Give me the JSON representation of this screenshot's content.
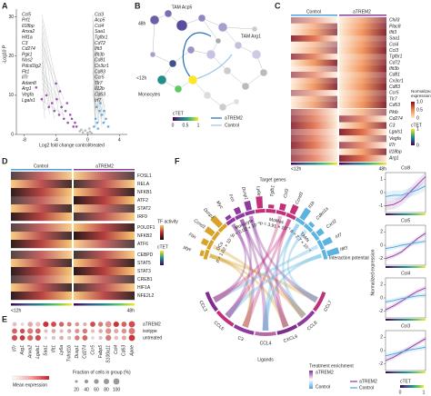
{
  "panel_labels": [
    "A",
    "B",
    "C",
    "D",
    "E",
    "F"
  ],
  "volcano": {
    "type": "scatter",
    "x_label": "Log2 fold change control/treated",
    "y_label": "-Log10 P",
    "xlim": [
      -9,
      5
    ],
    "ylim": [
      0,
      32
    ],
    "xticks": [
      -8,
      -4,
      0,
      4
    ],
    "yticks": [
      0,
      10,
      20,
      30
    ],
    "left_genes": [
      "Ccl5",
      "Prf1",
      "Il18bp",
      "Anxa2",
      "Hif1a",
      "C3",
      "Cd274",
      "Pgk1",
      "Nos2",
      "Pdcd1lg2",
      "Flt1",
      "Il7r",
      "Adam8",
      "Arg1",
      "Vegfa",
      "Lgals1"
    ],
    "right_genes": [
      "Ccl3",
      "Acp5",
      "Ccl4",
      "Saa1",
      "Tgfbr1",
      "Cd72",
      "Ifit3",
      "Ifit3b",
      "Cd81",
      "Cx3cr1",
      "Cd83",
      "Ccr5",
      "Tlr7",
      "Il12b",
      "Cd63",
      "Irf7"
    ],
    "groups": [
      {
        "color": "#7d2e8f",
        "x": [
          -6.5,
          -5.8,
          -5.2,
          -4.9,
          -4.5,
          -4.2,
          -3.9,
          -3.6,
          -3.3,
          -3.0,
          -2.8,
          -2.5,
          -2.2,
          -2.0,
          -1.8,
          -1.6,
          -1.4,
          -3.5,
          -4.0,
          -2.6
        ],
        "y": [
          12,
          9,
          10,
          7,
          8,
          6,
          9,
          5,
          7,
          4,
          6,
          3,
          5,
          4,
          2,
          3,
          2,
          11,
          13,
          8
        ]
      },
      {
        "color": "#3b9ad6",
        "x": [
          0.8,
          1.0,
          1.2,
          1.5,
          1.8,
          2.0,
          2.3,
          2.6,
          1.1,
          1.6,
          2.1,
          1.3
        ],
        "y": [
          2,
          4,
          3,
          6,
          5,
          3,
          4,
          2,
          7,
          8,
          6,
          1.5
        ]
      },
      {
        "color": "#aaaaaa",
        "x": [
          -1,
          -0.6,
          -0.3,
          0,
          0.3,
          0.5,
          -0.8,
          0.2
        ],
        "y": [
          0.8,
          0.5,
          1,
          0.4,
          0.7,
          0.3,
          1.2,
          1.5
        ]
      }
    ]
  },
  "network": {
    "tam_acp5": "TAM Acp5",
    "tam_arg1": "TAM Arg1",
    "t48": "48h",
    "t12": "<12h",
    "monocytes": "Monocytes",
    "legend_title": "cTET",
    "colorbar_ticks": [
      0,
      0.5,
      1
    ],
    "legend": [
      {
        "name": "aTREM2",
        "color": "#1f6fb4"
      },
      {
        "name": "Control",
        "color": "#9bc5e6"
      }
    ]
  },
  "heatmap_c": {
    "groups": [
      "Control",
      "aTREM2"
    ],
    "genes_up": [
      "Chil3",
      "Plac8",
      "Ifit3",
      "Saa1",
      "Ccl4",
      "Ccl3",
      "Tgfbr1",
      "Cd72",
      "Ifit3b",
      "Cd81",
      "Cx3cr1",
      "Cd83",
      "Ccr5",
      "Tlr7",
      "Cd63"
    ],
    "genes_down": [
      "Pkib",
      "Cd274",
      "C3",
      "Lgals1",
      "Vegfa",
      "Il7r",
      "Il18bp",
      "Arg1"
    ],
    "legend_title": "Normalized expression",
    "legend_ticks": [
      {
        "value": 1,
        "label": "1.0"
      },
      0.5,
      0
    ],
    "ctet_title": "cTET",
    "ctet_ticks": [
      0,
      1
    ],
    "time_labels": [
      "<12h",
      "48h"
    ]
  },
  "tf_heatmap": {
    "groups": [
      "Control",
      "aTREM2"
    ],
    "tfs": [
      "FOSL1",
      "RELA",
      "NFKB1",
      "ATF2",
      "STAT2",
      "IRF9",
      "POU2F1",
      "NFKB2",
      "ATF6",
      "CEBPD",
      "STAT5",
      "STAT3",
      "CREB1",
      "HIF1A",
      "NFE2L2"
    ],
    "legend_title": "TF activity",
    "ctet_title": "cTET",
    "time_labels": [
      "<12h",
      "48h"
    ]
  },
  "dotplot": {
    "genes": [
      "Il7r",
      "Arg1",
      "Anxa2",
      "Lgals1",
      "Saa1",
      "Ifit1",
      "Ly6a",
      "Tnfrsf1b",
      "Dusp1",
      "Cd274",
      "Ccr5",
      "Fabp5",
      "S100a11",
      "Ccl4",
      "Cd63",
      "Apoe"
    ],
    "groups": [
      "aTREM2",
      "isotype",
      "untreated"
    ],
    "mean": [
      [
        0.3,
        0.2,
        0.4,
        0.3,
        0.9,
        0.8,
        0.7,
        0.6,
        0.5,
        0.4,
        0.8,
        0.6,
        0.5,
        0.9,
        0.7,
        0.8
      ],
      [
        0.7,
        0.8,
        0.6,
        0.7,
        0.3,
        0.4,
        0.3,
        0.4,
        0.5,
        0.6,
        0.3,
        0.4,
        0.5,
        0.4,
        0.5,
        0.6
      ],
      [
        0.8,
        0.9,
        0.7,
        0.8,
        0.2,
        0.3,
        0.4,
        0.3,
        0.6,
        0.7,
        0.2,
        0.3,
        0.6,
        0.3,
        0.4,
        0.9
      ]
    ],
    "fraction": [
      [
        40,
        20,
        60,
        50,
        80,
        70,
        60,
        50,
        40,
        30,
        70,
        60,
        90,
        80,
        70,
        100
      ],
      [
        70,
        60,
        80,
        70,
        30,
        40,
        30,
        40,
        50,
        60,
        30,
        40,
        80,
        50,
        60,
        100
      ],
      [
        80,
        70,
        80,
        80,
        20,
        30,
        40,
        30,
        60,
        70,
        20,
        30,
        80,
        40,
        50,
        100
      ]
    ],
    "mean_title": "Mean expression",
    "fraction_title": "Fraction of cells in group (%)",
    "fraction_ticks": [
      20,
      40,
      60,
      80,
      100
    ]
  },
  "chord": {
    "title_targets": "Target genes",
    "title_interaction": "Interaction potential",
    "title_ligands": "Ligands",
    "targets": [
      {
        "label": "Myc",
        "color": "#d8a32a"
      },
      {
        "label": "Fos",
        "color": "#d8a32a"
      },
      {
        "label": "Ccnd1",
        "color": "#d8a32a"
      },
      {
        "label": "Dusp1",
        "color": "#d8a32a"
      },
      {
        "label": "Myc",
        "color": "#8e3a9e"
      },
      {
        "label": "Fos",
        "color": "#8e3a9e"
      },
      {
        "label": "Dusp1",
        "color": "#8e3a9e"
      },
      {
        "label": "Ly6e",
        "color": "#c2307a"
      },
      {
        "label": "Tgfb1",
        "color": "#c2307a"
      },
      {
        "label": "Ccl3",
        "color": "#c2307a"
      },
      {
        "label": "Ccnd1",
        "color": "#c2307a"
      },
      {
        "label": "Il1b",
        "color": "#5bb4e0"
      },
      {
        "label": "Cdkn1a",
        "color": "#5bb4e0"
      },
      {
        "label": "Cxcl2",
        "color": "#5bb4e0"
      },
      {
        "label": "Irf7",
        "color": "#5bb4e0"
      },
      {
        "label": "Ifit3",
        "color": "#5bb4e0"
      }
    ],
    "ligands": [
      "CCL7",
      "CCL8",
      "CXCL9",
      "CCL4",
      "C3",
      "CCL5",
      "CCL3"
    ],
    "cell_types": [
      "DCs",
      "Monocyte",
      "MoMac",
      "TAMs"
    ],
    "pvalues": [
      "p = 1.02 × 10⁻²",
      "p = 5.02 × 10⁻⁸",
      "p = 3.91 × 10⁻⁵",
      "p = 2.7 × 10⁻⁴"
    ],
    "legend_title": "Treatment enrichment",
    "legend": [
      {
        "name": "aTREM2",
        "color": "#7d2e8f"
      },
      {
        "name": "Control",
        "color": "#4aa3df"
      }
    ]
  },
  "line_plots": {
    "y_label": "Normalized expression",
    "legend": [
      {
        "name": "aTREM2",
        "color": "#8e3a9e"
      },
      {
        "name": "Control",
        "color": "#4aa3df"
      }
    ],
    "ctet_title": "cTET",
    "ctet_ticks": [
      0,
      1
    ],
    "plots": [
      {
        "title": "Ccl8",
        "ylim": [
          -1.5,
          1.5
        ],
        "yticks": [
          -1,
          0,
          1
        ],
        "lines": [
          [
            -1,
            -0.9,
            -0.6,
            0,
            0.6,
            1.2
          ],
          [
            -0.3,
            -0.2,
            -0.2,
            0,
            0.2,
            0.5
          ]
        ]
      },
      {
        "title": "Ccl5",
        "ylim": [
          -3,
          3
        ],
        "yticks": [
          -2,
          0,
          2
        ],
        "lines": [
          [
            -2,
            -1.6,
            -1,
            0,
            1,
            1.8
          ],
          [
            -0.5,
            -0.3,
            0,
            0.2,
            0.4,
            0.6
          ]
        ]
      },
      {
        "title": "Ccl4",
        "ylim": [
          -3,
          3
        ],
        "yticks": [
          -2,
          0,
          2
        ],
        "lines": [
          [
            -1.8,
            -1.2,
            -0.5,
            0.3,
            1,
            1.5
          ],
          [
            -0.6,
            -0.4,
            -0.1,
            0.1,
            0.3,
            0.4
          ]
        ]
      },
      {
        "title": "Ccl3",
        "ylim": [
          -3,
          3
        ],
        "yticks": [
          -2,
          0,
          2
        ],
        "lines": [
          [
            -1.5,
            -1,
            -0.3,
            0.4,
            1.1,
            1.8
          ],
          [
            -0.8,
            -0.5,
            -0.2,
            0.1,
            0.3,
            0.5
          ]
        ]
      }
    ]
  }
}
